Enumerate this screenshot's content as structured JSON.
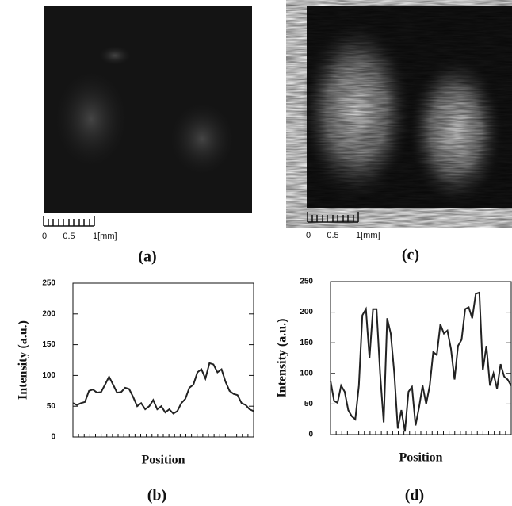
{
  "images": [
    {
      "caption": "(a)",
      "scale_labels": [
        "0",
        "0.5",
        "1[mm]"
      ]
    },
    {
      "caption": "(c)",
      "scale_labels": [
        "0",
        "0.5",
        "1[mm]"
      ]
    }
  ],
  "chart_data": [
    {
      "type": "line",
      "ylabel": "Intensity (a.u.)",
      "xlabel": "Position",
      "caption": "(b)",
      "color": "#222222",
      "values": [
        55,
        52,
        55,
        57,
        75,
        77,
        72,
        73,
        85,
        98,
        85,
        72,
        73,
        80,
        78,
        65,
        50,
        55,
        45,
        50,
        60,
        45,
        50,
        40,
        45,
        38,
        42,
        55,
        62,
        80,
        85,
        105,
        110,
        95,
        120,
        118,
        105,
        110,
        90,
        75,
        70,
        68,
        55,
        52,
        45,
        42
      ],
      "ylim": [
        0,
        250
      ],
      "yticks": [
        0,
        50,
        100,
        150,
        200,
        250
      ]
    },
    {
      "type": "line",
      "ylabel": "Intensity (a.u.)",
      "xlabel": "Position",
      "caption": "(d)",
      "color": "#222222",
      "values": [
        88,
        55,
        52,
        80,
        70,
        40,
        30,
        25,
        80,
        195,
        205,
        125,
        205,
        205,
        100,
        20,
        190,
        165,
        100,
        10,
        40,
        5,
        70,
        78,
        15,
        45,
        80,
        50,
        80,
        135,
        130,
        180,
        165,
        170,
        140,
        90,
        145,
        155,
        205,
        208,
        190,
        230,
        232,
        105,
        145,
        80,
        100,
        75,
        115,
        95,
        90,
        80
      ],
      "ylim": [
        0,
        250
      ],
      "yticks": [
        0,
        50,
        100,
        150,
        200,
        250
      ]
    }
  ]
}
